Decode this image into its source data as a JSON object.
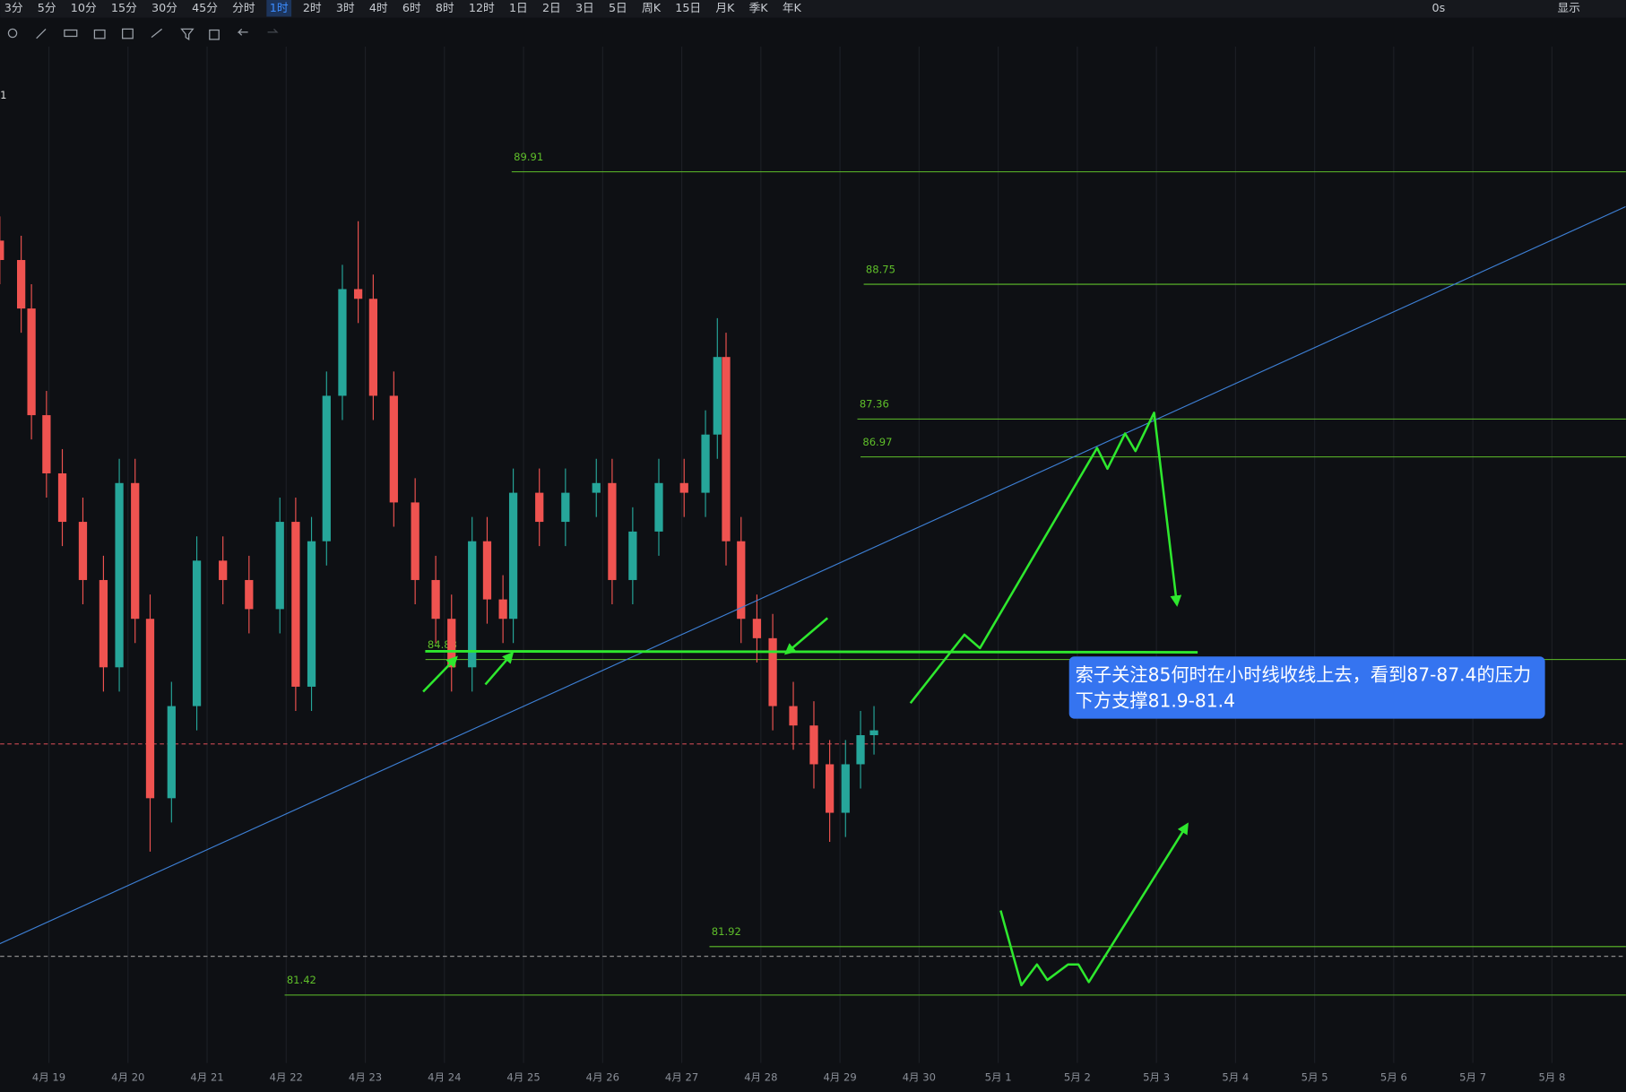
{
  "toolbar": {
    "periods": [
      "3分",
      "5分",
      "10分",
      "15分",
      "30分",
      "45分",
      "分时",
      "1时",
      "2时",
      "3时",
      "4时",
      "6时",
      "8时",
      "12时",
      "1日",
      "2日",
      "3日",
      "5日",
      "周K",
      "15日",
      "月K",
      "季K",
      "年K"
    ],
    "active": 7,
    "right": [
      "0s",
      "显示"
    ]
  },
  "chart_data": {
    "type": "candlestick",
    "xlim": [
      -0.616,
      19.934
    ],
    "ylim": [
      80.72,
      91.2
    ],
    "xticks": [
      {
        "value": 0,
        "label": "4月 19"
      },
      {
        "value": 1,
        "label": "4月 20"
      },
      {
        "value": 2,
        "label": "4月 21"
      },
      {
        "value": 3,
        "label": "4月 22"
      },
      {
        "value": 4,
        "label": "4月 23"
      },
      {
        "value": 5,
        "label": "4月 24"
      },
      {
        "value": 6,
        "label": "4月 25"
      },
      {
        "value": 7,
        "label": "4月 26"
      },
      {
        "value": 8,
        "label": "4月 27"
      },
      {
        "value": 9,
        "label": "4月 28"
      },
      {
        "value": 10,
        "label": "4月 29"
      },
      {
        "value": 11,
        "label": "4月 30"
      },
      {
        "value": 12,
        "label": "5月 1"
      },
      {
        "value": 13,
        "label": "5月 2"
      },
      {
        "value": 14,
        "label": "5月 3"
      },
      {
        "value": 15,
        "label": "5月 4"
      },
      {
        "value": 16,
        "label": "5月 5"
      },
      {
        "value": 17,
        "label": "5月 6"
      },
      {
        "value": 18,
        "label": "5月 7"
      },
      {
        "value": 19,
        "label": "5月 8"
      }
    ],
    "up_color": "#26a69a",
    "down_color": "#ef5350",
    "candles": [
      [
        -0.62,
        89.2,
        89.45,
        88.75,
        89.0
      ],
      [
        -0.35,
        89.0,
        89.25,
        88.25,
        88.5
      ],
      [
        -0.22,
        88.5,
        88.75,
        87.15,
        87.4
      ],
      [
        -0.03,
        87.4,
        87.65,
        86.55,
        86.8
      ],
      [
        0.17,
        86.8,
        87.05,
        86.05,
        86.3
      ],
      [
        0.43,
        86.3,
        86.55,
        85.45,
        85.7
      ],
      [
        0.69,
        85.7,
        85.95,
        84.55,
        84.8
      ],
      [
        0.89,
        84.8,
        86.95,
        84.55,
        86.7
      ],
      [
        1.09,
        86.7,
        86.95,
        85.05,
        85.3
      ],
      [
        1.28,
        85.3,
        85.55,
        82.9,
        83.45
      ],
      [
        1.55,
        83.45,
        84.65,
        83.2,
        84.4
      ],
      [
        1.87,
        84.4,
        86.15,
        84.15,
        85.9
      ],
      [
        2.2,
        85.9,
        86.15,
        85.45,
        85.7
      ],
      [
        2.53,
        85.7,
        85.95,
        85.15,
        85.4
      ],
      [
        2.92,
        85.4,
        86.55,
        85.15,
        86.3
      ],
      [
        3.12,
        86.3,
        86.55,
        84.35,
        84.6
      ],
      [
        3.32,
        84.6,
        86.35,
        84.35,
        86.1
      ],
      [
        3.51,
        86.1,
        87.85,
        85.85,
        87.6
      ],
      [
        3.71,
        87.6,
        88.95,
        87.35,
        88.7
      ],
      [
        3.91,
        88.7,
        89.4,
        88.35,
        88.6
      ],
      [
        4.1,
        88.6,
        88.85,
        87.35,
        87.6
      ],
      [
        4.36,
        87.6,
        87.85,
        86.25,
        86.5
      ],
      [
        4.63,
        86.5,
        86.75,
        85.45,
        85.7
      ],
      [
        4.89,
        85.7,
        85.95,
        85.05,
        85.3
      ],
      [
        5.09,
        85.3,
        85.55,
        84.55,
        84.8
      ],
      [
        5.35,
        84.8,
        86.35,
        84.55,
        86.1
      ],
      [
        5.54,
        86.1,
        86.35,
        85.25,
        85.5
      ],
      [
        5.74,
        85.5,
        85.75,
        85.05,
        85.3
      ],
      [
        5.87,
        85.3,
        86.85,
        85.05,
        86.6
      ],
      [
        6.2,
        86.6,
        86.85,
        86.05,
        86.3
      ],
      [
        6.53,
        86.3,
        86.85,
        86.05,
        86.6
      ],
      [
        6.92,
        86.6,
        86.95,
        86.35,
        86.7
      ],
      [
        7.12,
        86.7,
        86.95,
        85.45,
        85.7
      ],
      [
        7.38,
        85.7,
        86.45,
        85.45,
        86.2
      ],
      [
        7.71,
        86.2,
        86.95,
        85.95,
        86.7
      ],
      [
        8.03,
        86.7,
        86.95,
        86.35,
        86.6
      ],
      [
        8.3,
        86.6,
        87.45,
        86.35,
        87.2
      ],
      [
        8.45,
        87.2,
        88.4,
        86.95,
        88.0
      ],
      [
        8.56,
        88.0,
        88.25,
        85.85,
        86.1
      ],
      [
        8.75,
        86.1,
        86.35,
        85.05,
        85.3
      ],
      [
        8.95,
        85.3,
        85.55,
        84.85,
        85.1
      ],
      [
        9.15,
        85.1,
        85.35,
        84.15,
        84.4
      ],
      [
        9.41,
        84.4,
        84.65,
        83.95,
        84.2
      ],
      [
        9.67,
        84.2,
        84.45,
        83.55,
        83.8
      ],
      [
        9.87,
        83.8,
        84.05,
        83.0,
        83.3
      ],
      [
        10.07,
        83.3,
        84.05,
        83.05,
        83.8
      ],
      [
        10.26,
        83.8,
        84.35,
        83.55,
        84.1
      ],
      [
        10.43,
        84.1,
        84.4,
        83.9,
        84.15
      ]
    ],
    "trendline": {
      "x": [
        -0.62,
        19.93
      ],
      "y": [
        81.95,
        89.55
      ],
      "color": "#3d7fd4"
    },
    "level_color": "#5fbf2a",
    "levels": [
      {
        "value": 89.91,
        "start": 5.85
      },
      {
        "value": 88.75,
        "start": 10.3
      },
      {
        "value": 87.36,
        "start": 10.22
      },
      {
        "value": 86.97,
        "start": 10.26
      },
      {
        "value": 84.88,
        "start": 4.76
      },
      {
        "value": 81.92,
        "start": 8.35
      },
      {
        "value": 81.42,
        "start": 2.98
      }
    ],
    "price_lines": [
      {
        "value": 84.01,
        "color": "#b8434c"
      },
      {
        "value": 81.82,
        "color": "#8a8a8a"
      }
    ],
    "annotation": [
      "索子关注85何时在小时线收线上去，看到87-87.4的压力",
      "下方支撑81.9-81.4"
    ],
    "edge_mark": "1"
  }
}
